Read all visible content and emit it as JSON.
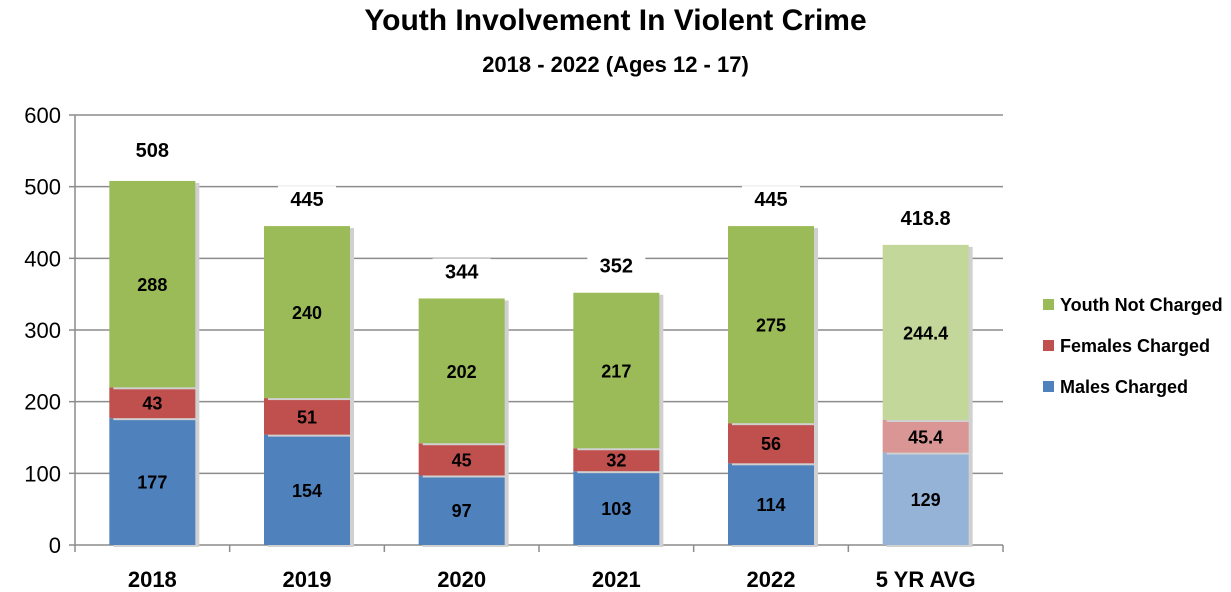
{
  "chart_data": {
    "type": "bar",
    "stacked": true,
    "title": "Youth Involvement In Violent Crime",
    "subtitle": "2018 - 2022 (Ages 12 - 17)",
    "categories": [
      "2018",
      "2019",
      "2020",
      "2021",
      "2022",
      "5 YR AVG"
    ],
    "series": [
      {
        "name": "Males Charged",
        "values": [
          177,
          154,
          97,
          103,
          114,
          129
        ],
        "labels": [
          "177",
          "154",
          "97",
          "103",
          "114",
          "129"
        ]
      },
      {
        "name": "Females Charged",
        "values": [
          43,
          51,
          45,
          32,
          56,
          45.4
        ],
        "labels": [
          "43",
          "51",
          "45",
          "32",
          "56",
          "45.4"
        ]
      },
      {
        "name": "Youth Not Charged",
        "values": [
          288,
          240,
          202,
          217,
          275,
          244.4
        ],
        "labels": [
          "288",
          "240",
          "202",
          "217",
          "275",
          "244.4"
        ]
      }
    ],
    "totals": [
      "508",
      "445",
      "344",
      "352",
      "445",
      "418.8"
    ],
    "colors": {
      "Males Charged": "#4f81bd",
      "Females Charged": "#c0504d",
      "Youth Not Charged": "#9bbb59"
    },
    "average_colors": {
      "Males Charged": "#95b3d7",
      "Females Charged": "#da9694",
      "Youth Not Charged": "#c4d79b"
    },
    "ylim": [
      0,
      600
    ],
    "yticks": [
      "0",
      "100",
      "200",
      "300",
      "400",
      "500",
      "600"
    ],
    "grid": true,
    "legend_position": "right"
  }
}
